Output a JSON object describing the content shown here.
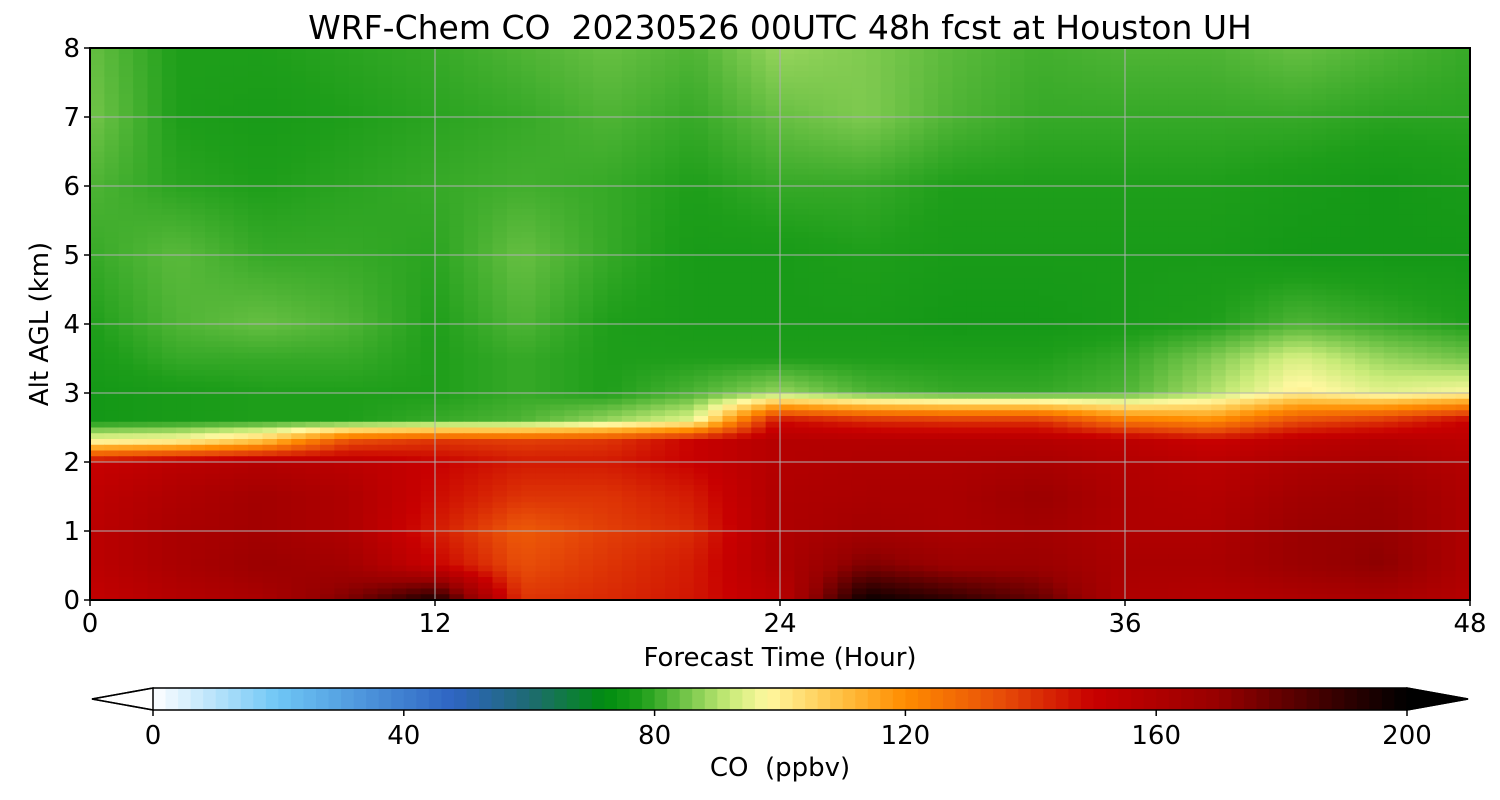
{
  "chart_data": {
    "type": "heatmap",
    "title": "WRF-Chem CO  20230526 00UTC 48h fcst at Houston UH",
    "xlabel": "Forecast Time (Hour)",
    "ylabel": "Alt AGL (km)",
    "xlim": [
      0,
      48
    ],
    "ylim": [
      0,
      8
    ],
    "xticks": [
      "0",
      "12",
      "24",
      "36",
      "48"
    ],
    "yticks": [
      "0",
      "1",
      "2",
      "3",
      "4",
      "5",
      "6",
      "7",
      "8"
    ],
    "grid": true,
    "x": [
      0,
      3,
      6,
      9,
      12,
      15,
      18,
      21,
      24,
      27,
      30,
      33,
      36,
      39,
      42,
      45,
      48
    ],
    "y": [
      0,
      0.5,
      1,
      1.5,
      2,
      2.3,
      2.6,
      3,
      3.5,
      4,
      5,
      6,
      7,
      8
    ],
    "values": [
      [
        152,
        158,
        162,
        175,
        195,
        140,
        142,
        146,
        155,
        198,
        190,
        180,
        160,
        158,
        160,
        162,
        158
      ],
      [
        155,
        162,
        168,
        165,
        150,
        135,
        140,
        145,
        160,
        175,
        168,
        168,
        162,
        162,
        168,
        172,
        160
      ],
      [
        155,
        162,
        165,
        160,
        145,
        132,
        138,
        142,
        160,
        165,
        162,
        165,
        160,
        160,
        168,
        170,
        160
      ],
      [
        154,
        160,
        165,
        160,
        148,
        140,
        140,
        145,
        160,
        162,
        162,
        168,
        160,
        158,
        165,
        168,
        160
      ],
      [
        150,
        155,
        158,
        155,
        150,
        145,
        145,
        150,
        158,
        160,
        160,
        162,
        158,
        155,
        160,
        162,
        158
      ],
      [
        98,
        100,
        110,
        135,
        140,
        138,
        140,
        150,
        158,
        158,
        158,
        158,
        155,
        150,
        155,
        158,
        155
      ],
      [
        76,
        77,
        78,
        78,
        80,
        82,
        88,
        95,
        148,
        142,
        140,
        140,
        125,
        120,
        135,
        140,
        150
      ],
      [
        76,
        77,
        78,
        78,
        78,
        80,
        78,
        82,
        88,
        82,
        80,
        80,
        82,
        90,
        100,
        95,
        98
      ],
      [
        77,
        80,
        80,
        80,
        78,
        80,
        78,
        78,
        78,
        78,
        78,
        78,
        80,
        86,
        94,
        88,
        85
      ],
      [
        78,
        82,
        84,
        82,
        78,
        82,
        78,
        77,
        77,
        77,
        76,
        76,
        77,
        78,
        82,
        80,
        78
      ],
      [
        80,
        83,
        80,
        80,
        79,
        84,
        80,
        77,
        77,
        78,
        77,
        77,
        77,
        77,
        76,
        76,
        76
      ],
      [
        82,
        79,
        78,
        79,
        80,
        81,
        80,
        78,
        80,
        80,
        78,
        78,
        78,
        78,
        77,
        76,
        77
      ],
      [
        85,
        78,
        77,
        78,
        79,
        80,
        82,
        80,
        84,
        86,
        82,
        80,
        80,
        80,
        80,
        79,
        79
      ],
      [
        84,
        78,
        78,
        79,
        80,
        82,
        84,
        82,
        88,
        86,
        83,
        81,
        82,
        82,
        84,
        82,
        80
      ]
    ],
    "colorbar": {
      "label": "CO  (ppbv)",
      "min": 0,
      "max": 200,
      "ticks": [
        "0",
        "40",
        "80",
        "120",
        "160",
        "200"
      ],
      "extend": "both",
      "stops": [
        {
          "v": 0,
          "c": "#ffffff"
        },
        {
          "v": 20,
          "c": "#6ec6f5"
        },
        {
          "v": 35,
          "c": "#4a90d9"
        },
        {
          "v": 48,
          "c": "#2e64c2"
        },
        {
          "v": 60,
          "c": "#1e6a72"
        },
        {
          "v": 72,
          "c": "#008c10"
        },
        {
          "v": 78,
          "c": "#1e9e1a"
        },
        {
          "v": 92,
          "c": "#c8eb78"
        },
        {
          "v": 98,
          "c": "#fff8a0"
        },
        {
          "v": 110,
          "c": "#ffbf40"
        },
        {
          "v": 120,
          "c": "#ff8c00"
        },
        {
          "v": 135,
          "c": "#e84e08"
        },
        {
          "v": 150,
          "c": "#c80000"
        },
        {
          "v": 170,
          "c": "#960000"
        },
        {
          "v": 190,
          "c": "#300000"
        },
        {
          "v": 200,
          "c": "#000000"
        }
      ]
    }
  }
}
